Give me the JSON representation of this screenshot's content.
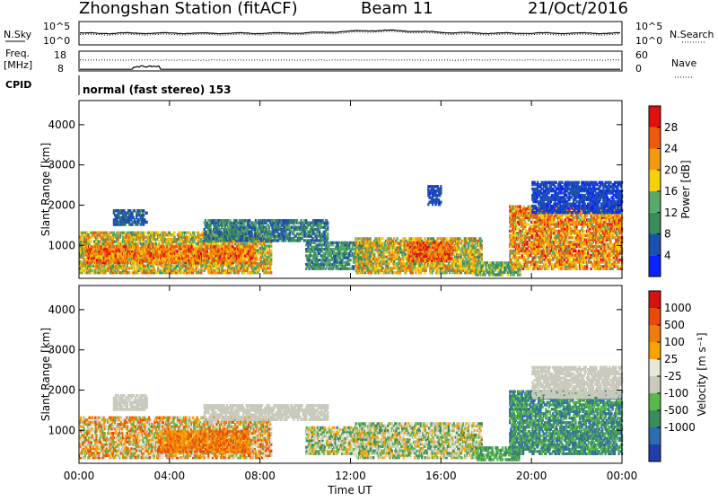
{
  "header": {
    "station": "Zhongshan Station (fitACF)",
    "beam": "Beam 11",
    "date": "21/Oct/2016"
  },
  "top_panels": {
    "nsky_label": "N.Sky",
    "nsky_ticks": [
      "10^5",
      "10^0"
    ],
    "nsearch_label": "N.Search",
    "nsearch_ticks": [
      "10^5",
      "10^0"
    ],
    "freq_label_1": "Freq.",
    "freq_label_2": "[MHz]",
    "freq_ticks": [
      "18",
      "8"
    ],
    "nave_label": "Nave",
    "nave_ticks": [
      "60",
      "0"
    ],
    "cpid_label": "CPID",
    "cpid_text": "normal (fast stereo) 153"
  },
  "colors": {
    "power": [
      "#0b24ff",
      "#1c4fb0",
      "#3a8a5a",
      "#5aa86a",
      "#f5d10a",
      "#f39a0c",
      "#f05a0a",
      "#e01010"
    ],
    "velocity": [
      "#1e3fa8",
      "#2f6bb0",
      "#3d8a5e",
      "#58b84a",
      "#c9c9bc",
      "#e8e8d8",
      "#f7a300",
      "#f07a0a",
      "#e84a0a",
      "#d81010"
    ]
  },
  "chart_data": [
    {
      "type": "heatmap",
      "name": "Power",
      "xlabel": "",
      "ylabel": "Slant Range [km]",
      "x_ticks": [
        "00:00",
        "04:00",
        "08:00",
        "12:00",
        "16:00",
        "20:00",
        "00:00"
      ],
      "y_ticks": [
        1000,
        2000,
        3000,
        4000
      ],
      "ylim": [
        180,
        4600
      ],
      "xlim_hours": [
        0,
        24
      ],
      "colorbar_label": "Power [dB]",
      "colorbar_ticks": [
        4,
        8,
        12,
        16,
        20,
        24,
        28
      ],
      "colorbar_range": [
        0,
        32
      ],
      "scatter_regions": [
        {
          "t0": 0.0,
          "t1": 8.5,
          "r0": 300,
          "r1": 1350,
          "v0": 10,
          "v1": 26
        },
        {
          "t0": 0.3,
          "t1": 7.8,
          "r0": 550,
          "r1": 1000,
          "v0": 18,
          "v1": 30
        },
        {
          "t0": 1.5,
          "t1": 3.0,
          "r0": 1500,
          "r1": 1900,
          "v0": 4,
          "v1": 9
        },
        {
          "t0": 5.5,
          "t1": 11.0,
          "r0": 1100,
          "r1": 1650,
          "v0": 4,
          "v1": 14
        },
        {
          "t0": 10.0,
          "t1": 13.0,
          "r0": 400,
          "r1": 1100,
          "v0": 6,
          "v1": 16
        },
        {
          "t0": 12.2,
          "t1": 17.8,
          "r0": 300,
          "r1": 1200,
          "v0": 10,
          "v1": 26
        },
        {
          "t0": 14.5,
          "t1": 16.5,
          "r0": 600,
          "r1": 1100,
          "v0": 20,
          "v1": 31
        },
        {
          "t0": 15.4,
          "t1": 16.0,
          "r0": 2000,
          "r1": 2500,
          "v0": 3,
          "v1": 8
        },
        {
          "t0": 17.5,
          "t1": 19.5,
          "r0": 250,
          "r1": 600,
          "v0": 8,
          "v1": 18
        },
        {
          "t0": 19.0,
          "t1": 24.0,
          "r0": 400,
          "r1": 2000,
          "v0": 14,
          "v1": 30
        },
        {
          "t0": 20.0,
          "t1": 24.0,
          "r0": 1800,
          "r1": 2600,
          "v0": 2,
          "v1": 8
        }
      ]
    },
    {
      "type": "heatmap",
      "name": "Velocity",
      "xlabel": "Time UT",
      "ylabel": "Slant Range [km]",
      "x_ticks": [
        "00:00",
        "04:00",
        "08:00",
        "12:00",
        "16:00",
        "20:00",
        "00:00"
      ],
      "y_ticks": [
        1000,
        2000,
        3000,
        4000
      ],
      "ylim": [
        180,
        4600
      ],
      "xlim_hours": [
        0,
        24
      ],
      "colorbar_label": "Velocity [m s⁻¹]",
      "colorbar_ticks": [
        1000,
        500,
        100,
        25,
        -25,
        -100,
        -500,
        -1000
      ],
      "scatter_regions": [
        {
          "t0": 0.0,
          "t1": 8.5,
          "r0": 300,
          "r1": 1350,
          "v0": 3,
          "v1": 9
        },
        {
          "t0": 3.5,
          "t1": 7.5,
          "r0": 450,
          "r1": 1000,
          "v0": 6,
          "v1": 9
        },
        {
          "t0": 1.5,
          "t1": 3.0,
          "r0": 1500,
          "r1": 1900,
          "v0": 4,
          "v1": 5
        },
        {
          "t0": 5.5,
          "t1": 11.0,
          "r0": 1250,
          "r1": 1650,
          "v0": 4,
          "v1": 5
        },
        {
          "t0": 10.0,
          "t1": 13.0,
          "r0": 400,
          "r1": 1100,
          "v0": 2,
          "v1": 7
        },
        {
          "t0": 12.2,
          "t1": 17.8,
          "r0": 300,
          "r1": 1200,
          "v0": 2,
          "v1": 7
        },
        {
          "t0": 17.5,
          "t1": 19.5,
          "r0": 250,
          "r1": 600,
          "v0": 2,
          "v1": 4
        },
        {
          "t0": 19.0,
          "t1": 24.0,
          "r0": 400,
          "r1": 2000,
          "v0": 1,
          "v1": 4
        },
        {
          "t0": 20.0,
          "t1": 24.0,
          "r0": 1800,
          "r1": 2600,
          "v0": 4,
          "v1": 5
        }
      ]
    }
  ]
}
